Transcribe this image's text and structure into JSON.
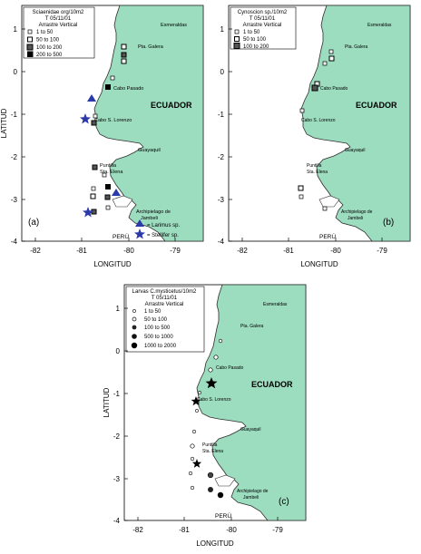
{
  "panels": [
    {
      "id": "a",
      "panel_label": "(a)",
      "legend": {
        "title": [
          "Sciaenidae org/10m2",
          "T 05/11/01",
          "Arrastre Vertical"
        ],
        "items": [
          "1  to  50",
          "50  to  100",
          "100  to  200",
          "200  to  500"
        ]
      },
      "places": {
        "esmeraldas": "Esmeraldas",
        "galera": "Pta. Galera",
        "pasado": "Cabo Pasado",
        "country": "ECUADOR",
        "lorenzo": "Cabo S. Lorenzo",
        "guayaquil": "Guayaquil",
        "puntilla": "Puntilla",
        "elena": "Sta. Elena",
        "archipielago": "Archipielago de",
        "jambeli": "Jambeli",
        "peru": "PERÚ"
      },
      "species_legend": [
        "= Larimus sp.",
        "= Stellifer sp."
      ],
      "y_axis_label": "LATITUD",
      "x_axis_label": "LONGITUD",
      "x_ticks": [
        "-82",
        "-81",
        "-80",
        "-79"
      ],
      "y_ticks": [
        "1",
        "0",
        "-1",
        "-2",
        "-3",
        "-4"
      ]
    },
    {
      "id": "b",
      "panel_label": "(b)",
      "legend": {
        "title": [
          "Cynoscion sp./10m2",
          "T 05/11/01",
          "Arrastre Vertical"
        ],
        "items": [
          "1  to  50",
          "50  to  100",
          "100  to  200"
        ]
      },
      "places": {
        "esmeraldas": "Esmeraldas",
        "galera": "Pta. Galera",
        "pasado": "Cabo Pasado",
        "country": "ECUADOR",
        "lorenzo": "Cabo S. Lorenzo",
        "guayaquil": "Guayaquil",
        "puntilla": "Puntilla",
        "elena": "Sta. Elena",
        "archipielago": "Archipielago de",
        "jambeli": "Jambeli",
        "peru": "PERÚ"
      },
      "x_axis_label": "LONGITUD",
      "x_ticks": [
        "-82",
        "-81",
        "-80",
        "-79"
      ],
      "y_ticks": [
        "1",
        "0",
        "-1",
        "-2",
        "-3",
        "-4"
      ]
    },
    {
      "id": "c",
      "panel_label": "(c)",
      "legend": {
        "title": [
          "Larvas C.mysticetus/10m2",
          "T 05/11/01",
          "Arrastre Vertical"
        ],
        "items": [
          "1  to  50",
          "50  to  100",
          "100  to  500",
          "500  to  1000",
          "1000  to  2000"
        ]
      },
      "places": {
        "esmeraldas": "Esmeraldas",
        "galera": "Pta. Galera",
        "pasado": "Cabo Pasado",
        "country": "ECUADOR",
        "lorenzo": "Cabo S. Lorenzo",
        "guayaquil": "Guayaquil",
        "puntilla": "Puntilla",
        "elena": "Sta. Elena",
        "archipielago": "Archipielago de",
        "jambeli": "Jambeli",
        "peru": "PERÚ"
      },
      "y_axis_label": "LATITUD",
      "x_axis_label": "LONGITUD",
      "x_ticks": [
        "-82",
        "-81",
        "-80",
        "-79"
      ],
      "y_ticks": [
        "1",
        "0",
        "-1",
        "-2",
        "-3",
        "-4"
      ]
    }
  ],
  "colors": {
    "land": "#9cdcbf",
    "coast": "#2f2f2f",
    "sea": "#ffffff",
    "species_marker": "#2b3aa8"
  }
}
